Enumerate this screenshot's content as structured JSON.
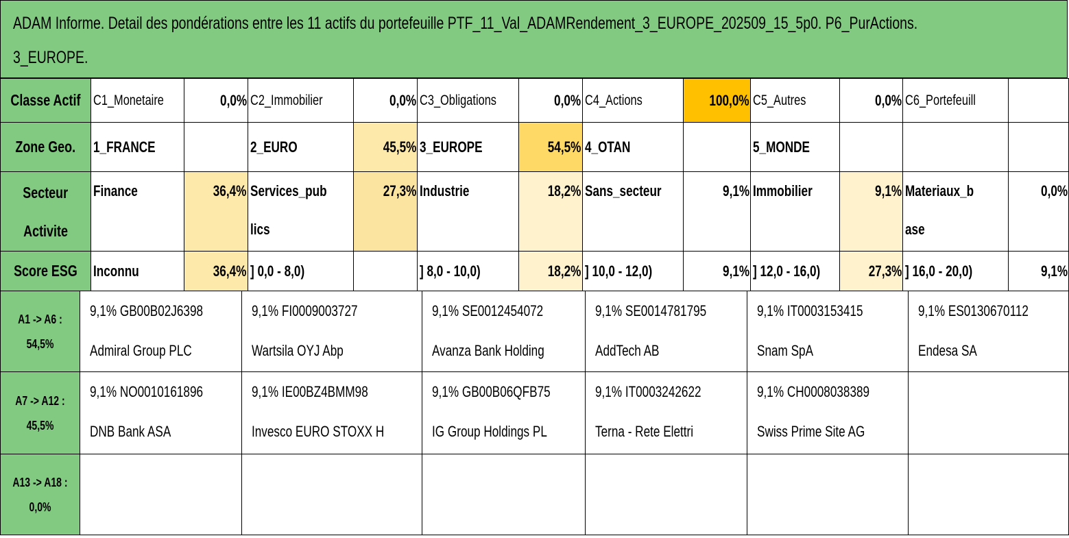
{
  "title": {
    "line1": "ADAM Informe. Detail des pondérations entre les 11 actifs du portefeuille PTF_11_Val_ADAMRendement_3_EUROPE_202509_15_5p0. P6_PurActions.",
    "line2": "3_EUROPE."
  },
  "classe": {
    "label": "Classe Actif",
    "items": [
      {
        "name": "C1_Monetaire",
        "value": "0,0%"
      },
      {
        "name": "C2_Immobilier",
        "value": "0,0%"
      },
      {
        "name": "C3_Obligations",
        "value": "0,0%"
      },
      {
        "name": "C4_Actions",
        "value": "100,0%"
      },
      {
        "name": "C5_Autres",
        "value": "0,0%"
      },
      {
        "name": "C6_Portefeuill",
        "value": ""
      }
    ]
  },
  "zone": {
    "label": "Zone Geo.",
    "items": [
      {
        "name": "1_FRANCE",
        "value": ""
      },
      {
        "name": "2_EURO",
        "value": "45,5%"
      },
      {
        "name": "3_EUROPE",
        "value": "54,5%"
      },
      {
        "name": "4_OTAN",
        "value": ""
      },
      {
        "name": "5_MONDE",
        "value": ""
      },
      {
        "name": "",
        "value": ""
      }
    ]
  },
  "secteur": {
    "label_line1": "Secteur",
    "label_line2": "Activite",
    "items": [
      {
        "name": "Finance",
        "value": "36,4%"
      },
      {
        "name": "Services_pub lics",
        "value": "27,3%"
      },
      {
        "name": "Industrie",
        "value": "18,2%"
      },
      {
        "name": "Sans_secteur",
        "value": "9,1%"
      },
      {
        "name": "Immobilier",
        "value": "9,1%"
      },
      {
        "name": "Materiaux_b ase",
        "value": "0,0%"
      }
    ]
  },
  "esg": {
    "label": "Score ESG",
    "items": [
      {
        "name": "Inconnu",
        "value": "36,4%"
      },
      {
        "name": "] 0,0 - 8,0)",
        "value": ""
      },
      {
        "name": "] 8,0 - 10,0)",
        "value": "18,2%"
      },
      {
        "name": "] 10,0 - 12,0)",
        "value": "9,1%"
      },
      {
        "name": "] 12,0 - 16,0)",
        "value": "27,3%"
      },
      {
        "name": "] 16,0 - 20,0)",
        "value": "9,1%"
      }
    ]
  },
  "groups": [
    {
      "label_line1": "A1 -> A6 :",
      "label_line2": "54,5%",
      "assets": [
        {
          "line1": "9,1% GB00B02J6398",
          "line2": "Admiral Group PLC"
        },
        {
          "line1": "9,1% FI0009003727",
          "line2": "Wartsila OYJ Abp"
        },
        {
          "line1": "9,1% SE0012454072",
          "line2": "Avanza Bank Holding"
        },
        {
          "line1": "9,1% SE0014781795",
          "line2": "AddTech AB"
        },
        {
          "line1": "9,1% IT0003153415",
          "line2": "Snam SpA"
        },
        {
          "line1": "9,1% ES0130670112",
          "line2": "Endesa SA"
        }
      ]
    },
    {
      "label_line1": "A7 -> A12 :",
      "label_line2": "45,5%",
      "assets": [
        {
          "line1": "9,1% NO0010161896",
          "line2": "DNB Bank ASA"
        },
        {
          "line1": "9,1% IE00BZ4BMM98",
          "line2": "Invesco EURO STOXX H"
        },
        {
          "line1": "9,1% GB00B06QFB75",
          "line2": "IG Group Holdings PL"
        },
        {
          "line1": "9,1% IT0003242622",
          "line2": "Terna - Rete Elettri"
        },
        {
          "line1": "9,1% CH0008038389",
          "line2": "Swiss Prime Site AG"
        },
        {
          "line1": "",
          "line2": ""
        }
      ]
    },
    {
      "label_line1": "A13 -> A18 :",
      "label_line2": "0,0%",
      "assets": [
        {
          "line1": "",
          "line2": ""
        },
        {
          "line1": "",
          "line2": ""
        },
        {
          "line1": "",
          "line2": ""
        },
        {
          "line1": "",
          "line2": ""
        },
        {
          "line1": "",
          "line2": ""
        },
        {
          "line1": "",
          "line2": ""
        }
      ]
    }
  ]
}
